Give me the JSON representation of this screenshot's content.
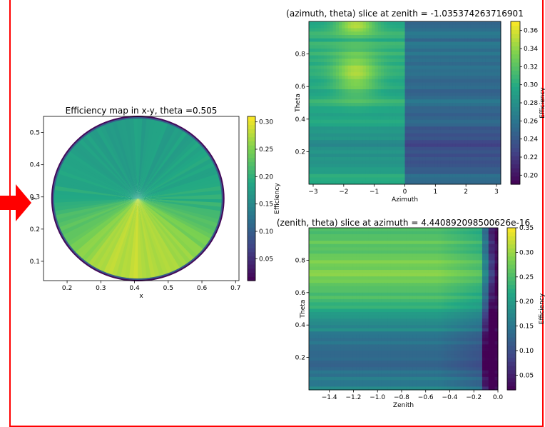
{
  "colors": {
    "frame": "#ff0000",
    "arrow": "#ff0000",
    "colormap": [
      "#440154",
      "#414487",
      "#2a788e",
      "#22a884",
      "#7ad151",
      "#fde725"
    ]
  },
  "icons": {
    "arrow": "red-right-arrow-icon"
  },
  "chart_data": [
    {
      "type": "heatmap",
      "title": "Efficiency map in x-y, theta =0.505",
      "xlabel": "x",
      "ylabel": "y",
      "xlim": [
        0.13,
        0.71
      ],
      "ylim": [
        0.04,
        0.55
      ],
      "x_ticks": [
        "0.2",
        "0.3",
        "0.4",
        "0.5",
        "0.6",
        "0.7"
      ],
      "y_ticks": [
        "0.1",
        "0.2",
        "0.3",
        "0.4",
        "0.5"
      ],
      "colorbar_label": "Efficiency",
      "colorbar_range": [
        0.01,
        0.31
      ],
      "colorbar_ticks": [
        "0.05",
        "0.10",
        "0.15",
        "0.20",
        "0.25",
        "0.30"
      ],
      "disk": {
        "center_x": 0.41,
        "center_y": 0.295,
        "radius": 0.255
      },
      "cmap": "viridis",
      "grid": false
    },
    {
      "type": "heatmap",
      "title": "(azimuth, theta) slice at zenith = -1.035374263716901",
      "xlabel": "Azimuth",
      "ylabel": "Theta",
      "xlim": [
        -3.14,
        3.14
      ],
      "ylim": [
        0.0,
        1.0
      ],
      "x_ticks": [
        "−3",
        "−2",
        "−1",
        "0",
        "1",
        "2",
        "3"
      ],
      "y_ticks": [
        "0.2",
        "0.4",
        "0.6",
        "0.8"
      ],
      "colorbar_label": "Efficiency",
      "colorbar_range": [
        0.19,
        0.37
      ],
      "colorbar_ticks": [
        "0.20",
        "0.22",
        "0.24",
        "0.26",
        "0.28",
        "0.30",
        "0.32",
        "0.34",
        "0.36"
      ],
      "cmap": "viridis",
      "grid": false
    },
    {
      "type": "heatmap",
      "title": "(zenith, theta) slice at azimuth = 4.440892098500626e-16",
      "xlabel": "Zenith",
      "ylabel": "Theta",
      "xlim": [
        -1.57,
        0.0
      ],
      "ylim": [
        0.0,
        1.0
      ],
      "x_ticks": [
        "−1.4",
        "−1.2",
        "−1.0",
        "−0.8",
        "−0.6",
        "−0.4",
        "−0.2",
        "0.0"
      ],
      "y_ticks": [
        "0.2",
        "0.4",
        "0.6",
        "0.8"
      ],
      "colorbar_label": "Efficiency",
      "colorbar_range": [
        0.02,
        0.35
      ],
      "colorbar_ticks": [
        "0.05",
        "0.10",
        "0.15",
        "0.20",
        "0.25",
        "0.30",
        "0.35"
      ],
      "cmap": "viridis",
      "grid": false
    }
  ]
}
